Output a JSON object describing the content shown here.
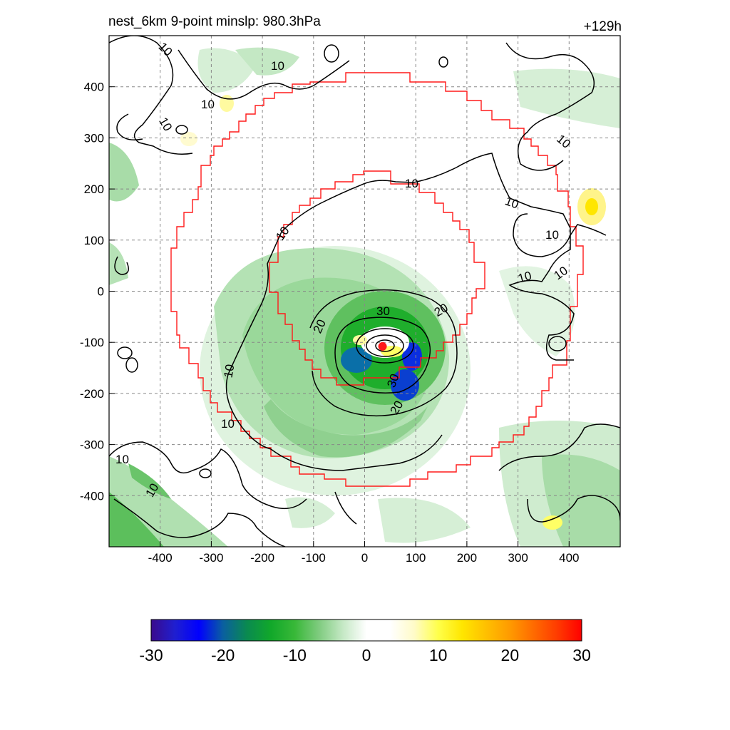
{
  "header": {
    "left": "nest_6km  9-point minslp: 980.3hPa",
    "right": "+129h"
  },
  "chart_data": {
    "type": "heatmap",
    "title": "nest_6km  9-point minslp: 980.3hPa",
    "forecast_hour_label": "+129h",
    "min_slp_hPa": 980.3,
    "xlim": [
      -500,
      500
    ],
    "ylim": [
      -500,
      500
    ],
    "x_ticks": [
      "-400",
      "-300",
      "-200",
      "-100",
      "0",
      "100",
      "200",
      "300",
      "400"
    ],
    "y_ticks": [
      "400",
      "300",
      "200",
      "100",
      "0",
      "-100",
      "-200",
      "-300",
      "-400"
    ],
    "grid": true,
    "storm_center": {
      "x": 35,
      "y": -108,
      "color": "#ff1a1a"
    },
    "contour_labels": [
      "10",
      "10",
      "10",
      "10",
      "10",
      "10",
      "10",
      "10",
      "10",
      "10",
      "10",
      "10",
      "10",
      "10",
      "10",
      "20",
      "20",
      "20",
      "30",
      "30"
    ],
    "colorbar": {
      "min": -30,
      "max": 30,
      "tick_labels": [
        "-30",
        "-20",
        "-10",
        "0",
        "10",
        "20",
        "30"
      ],
      "stops": [
        "#3a0a8c",
        "#1f1fd0",
        "#0000ff",
        "#0a5fa0",
        "#0a8a50",
        "#11a82a",
        "#38b838",
        "#7ecb7e",
        "#c4e8c4",
        "#ffffff",
        "#ffffff",
        "#fffbc8",
        "#ffff4a",
        "#ffe600",
        "#ffc000",
        "#ff9a00",
        "#ff6a00",
        "#ff3a00",
        "#ff0000"
      ]
    }
  }
}
